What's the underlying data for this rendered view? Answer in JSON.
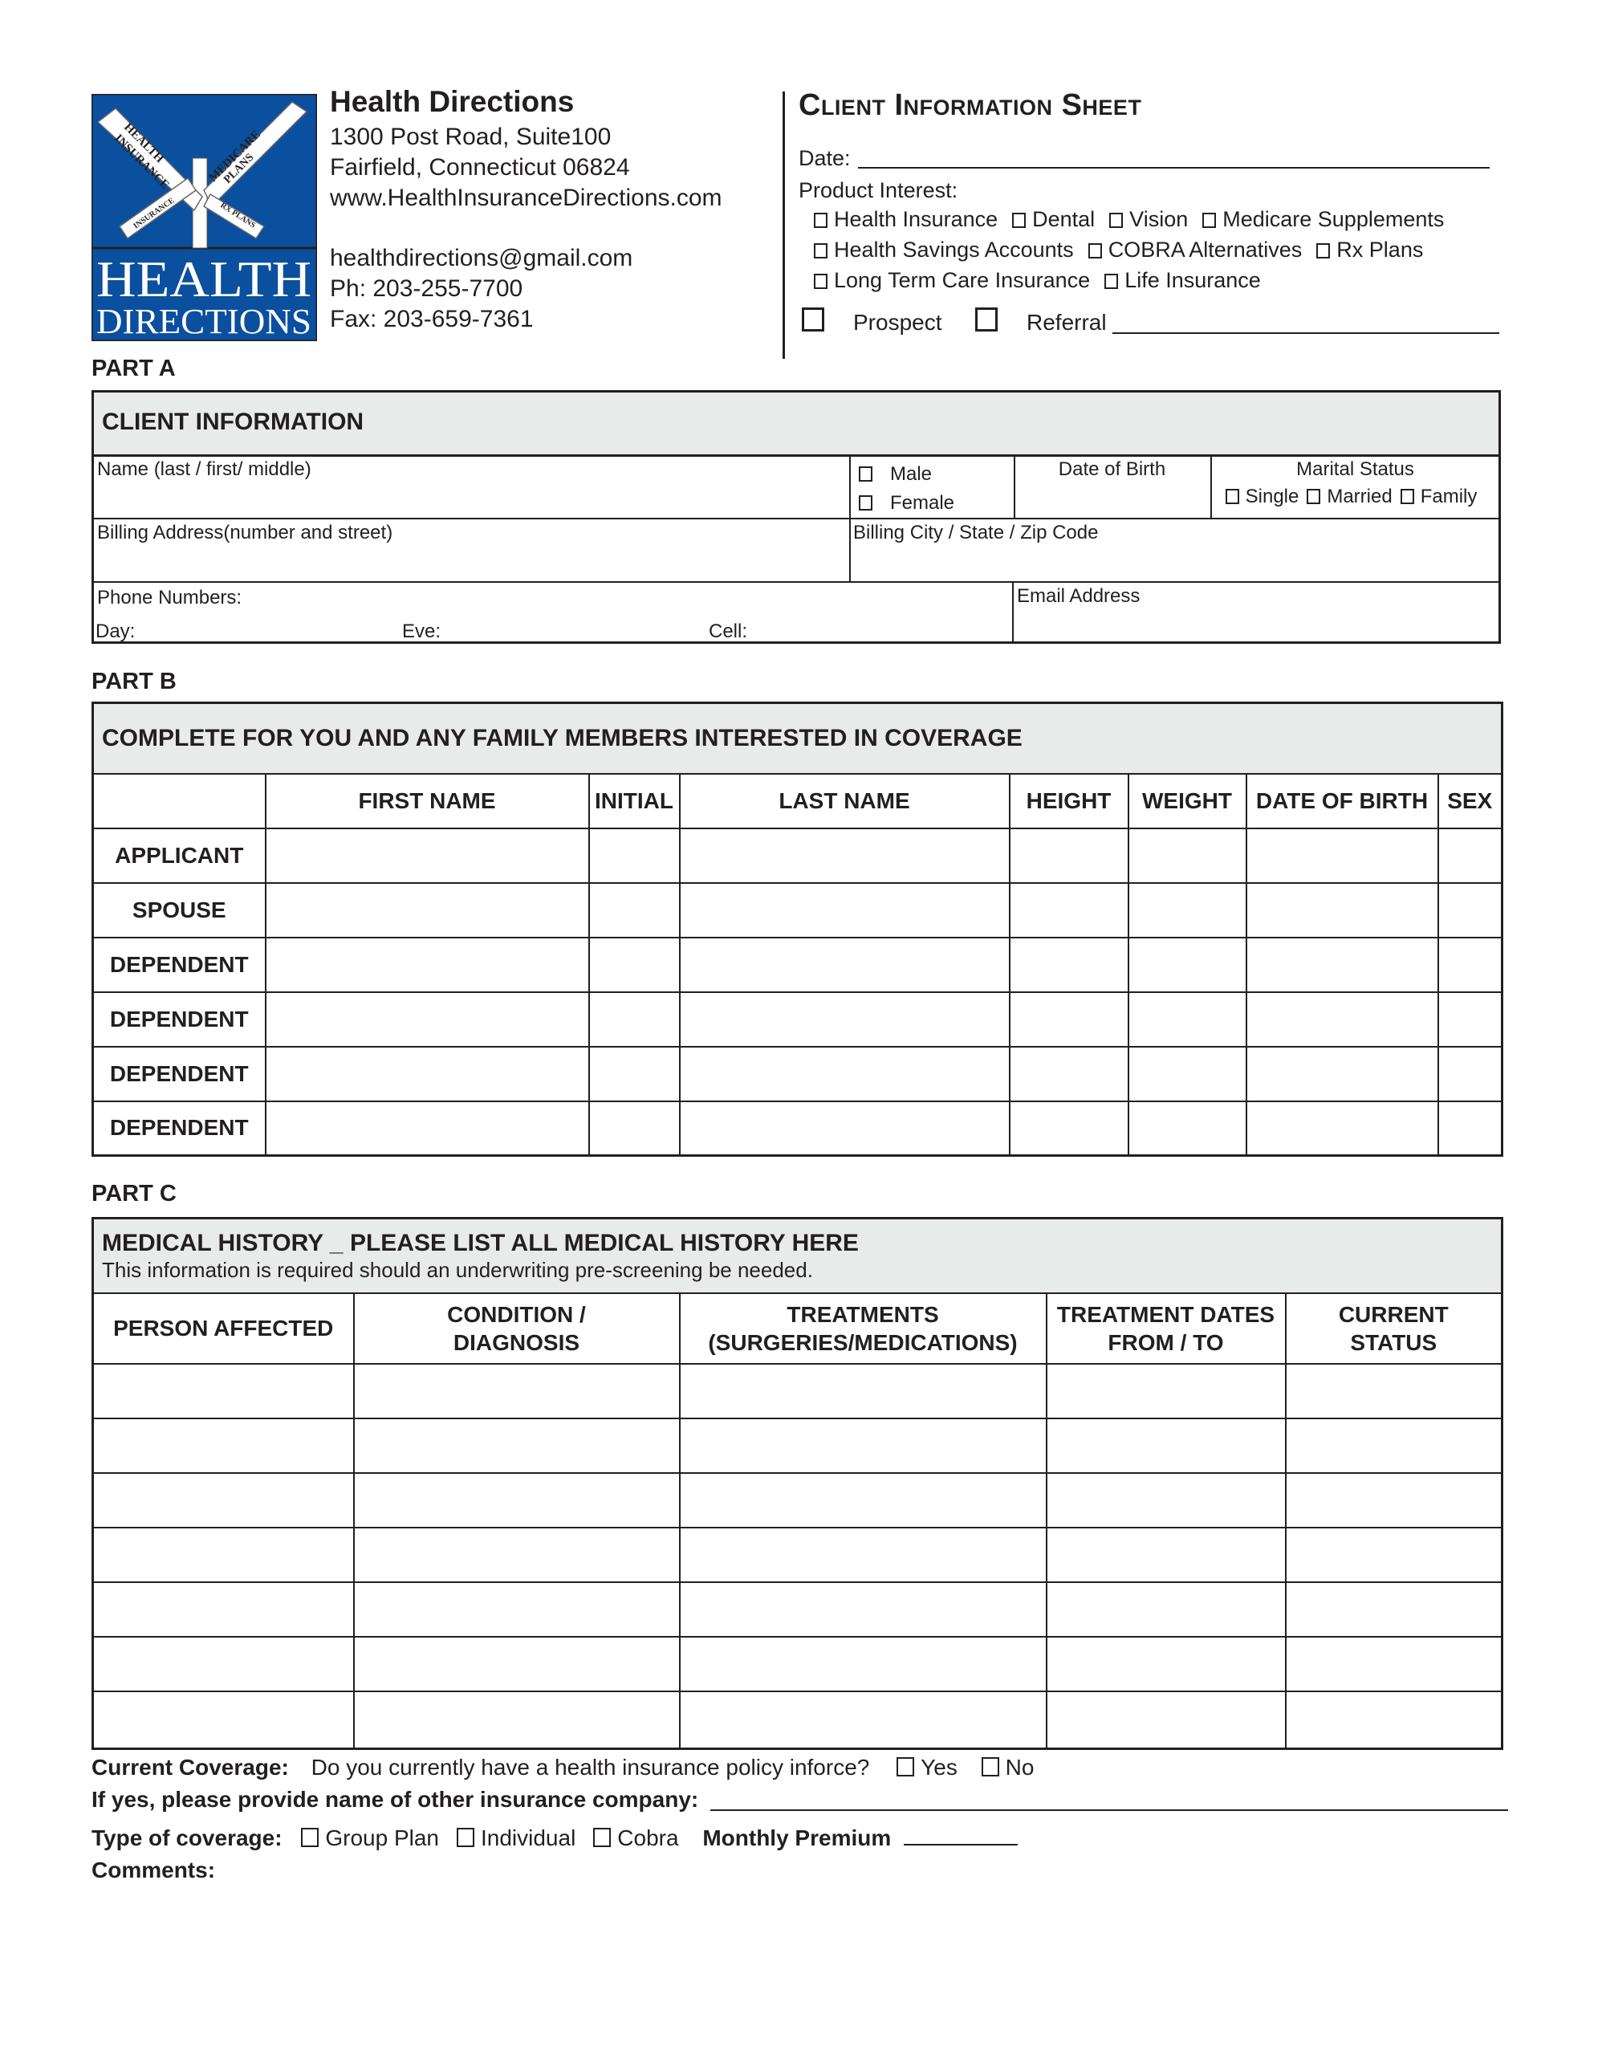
{
  "logo": {
    "brand_color": "#0b4f9f",
    "word1": "HEALTH",
    "word2": "DIRECTIONS",
    "signs": [
      "HEALTH INSURANCE",
      "MEDICARE PLANS",
      "LTC INSURANCE",
      "RX PLANS"
    ]
  },
  "company": {
    "name": "Health Directions",
    "address1": "1300 Post Road, Suite100",
    "address2": "Fairfield, Connecticut 06824",
    "website": "www.HealthInsuranceDirections.com",
    "email": "healthdirections@gmail.com",
    "phone": "Ph: 203-255-7700",
    "fax": "Fax: 203-659-7361"
  },
  "sheet": {
    "title": "Client Information Sheet",
    "date_label": "Date:",
    "product_interest_label": "Product Interest:",
    "products_row1": [
      "Health Insurance",
      "Dental",
      "Vision",
      "Medicare Supplements"
    ],
    "products_row2": [
      "Health Savings Accounts",
      "COBRA Alternatives",
      "Rx Plans"
    ],
    "products_row3": [
      "Long Term Care Insurance",
      "Life Insurance"
    ],
    "prospect_label": "Prospect",
    "referral_label": "Referral"
  },
  "part_a": {
    "label": "PART A",
    "header": "CLIENT INFORMATION",
    "name_label": "Name (last / first/ middle)",
    "male": "Male",
    "female": "Female",
    "dob_label": "Date of Birth",
    "marital_label": "Marital Status",
    "marital_options": [
      "Single",
      "Married",
      "Family"
    ],
    "billing_address_label": "Billing Address(number and street)",
    "billing_city_label": "Billing City / State / Zip Code",
    "phone_label": "Phone Numbers:",
    "day_label": "Day:",
    "eve_label": "Eve:",
    "cell_label": "Cell:",
    "email_label": "Email Address"
  },
  "part_b": {
    "label": "PART B",
    "header": "COMPLETE FOR YOU AND ANY FAMILY MEMBERS INTERESTED IN COVERAGE",
    "columns": [
      "",
      "FIRST NAME",
      "INITIAL",
      "LAST NAME",
      "HEIGHT",
      "WEIGHT",
      "DATE OF BIRTH",
      "SEX"
    ],
    "rows": [
      "APPLICANT",
      "SPOUSE",
      "DEPENDENT",
      "DEPENDENT",
      "DEPENDENT",
      "DEPENDENT"
    ]
  },
  "part_c": {
    "label": "PART C",
    "header": "MEDICAL HISTORY _ PLEASE LIST ALL MEDICAL HISTORY HERE",
    "subheader": "This information is required should an underwriting pre-screening be needed.",
    "columns": [
      [
        "PERSON AFFECTED"
      ],
      [
        "CONDITION /",
        "DIAGNOSIS"
      ],
      [
        "TREATMENTS",
        "(SURGERIES/MEDICATIONS)"
      ],
      [
        "TREATMENT DATES",
        "FROM / TO"
      ],
      [
        "CURRENT",
        "STATUS"
      ]
    ],
    "row_count": 7
  },
  "footer": {
    "coverage_label": "Current Coverage:",
    "coverage_question": "Do you currently have a health insurance policy inforce?",
    "yes": "Yes",
    "no": "No",
    "other_company_label": "If yes, please provide name of other insurance company:",
    "type_label": "Type of coverage:",
    "types": [
      "Group Plan",
      "Individual",
      "Cobra"
    ],
    "premium_label": "Monthly Premium",
    "comments_label": "Comments:"
  }
}
